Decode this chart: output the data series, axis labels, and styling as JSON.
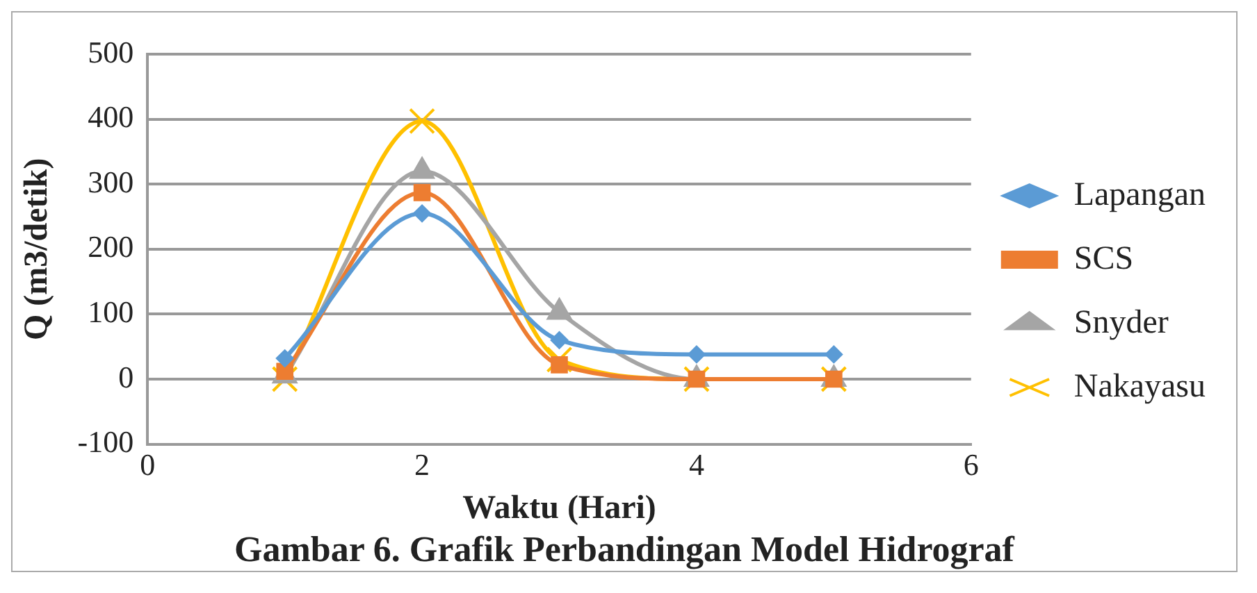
{
  "chart_data": {
    "type": "line",
    "xlabel": "Waktu (Hari)",
    "ylabel": "Q (m3/detik)",
    "x": [
      1,
      2,
      3,
      4,
      5
    ],
    "series": [
      {
        "name": "Lapangan",
        "color": "#5b9bd5",
        "marker": "diamond",
        "values": [
          32,
          255,
          60,
          38,
          38
        ]
      },
      {
        "name": "SCS",
        "color": "#ed7d31",
        "marker": "square",
        "values": [
          12,
          287,
          22,
          0,
          0
        ]
      },
      {
        "name": "Snyder",
        "color": "#a5a5a5",
        "marker": "triangle",
        "values": [
          5,
          320,
          103,
          0,
          0
        ]
      },
      {
        "name": "Nakayasu",
        "color": "#ffc000",
        "marker": "cross",
        "values": [
          0,
          397,
          30,
          0,
          0
        ]
      }
    ],
    "xlim": [
      0,
      6
    ],
    "xticks": [
      0,
      2,
      4,
      6
    ],
    "ylim": [
      -100,
      500
    ],
    "yticks": [
      -100,
      0,
      100,
      200,
      300,
      400,
      500
    ],
    "grid": "y",
    "legend": "right",
    "annotations": [
      "Gambar 6. Grafik Perbandingan Model Hidrograf"
    ]
  }
}
